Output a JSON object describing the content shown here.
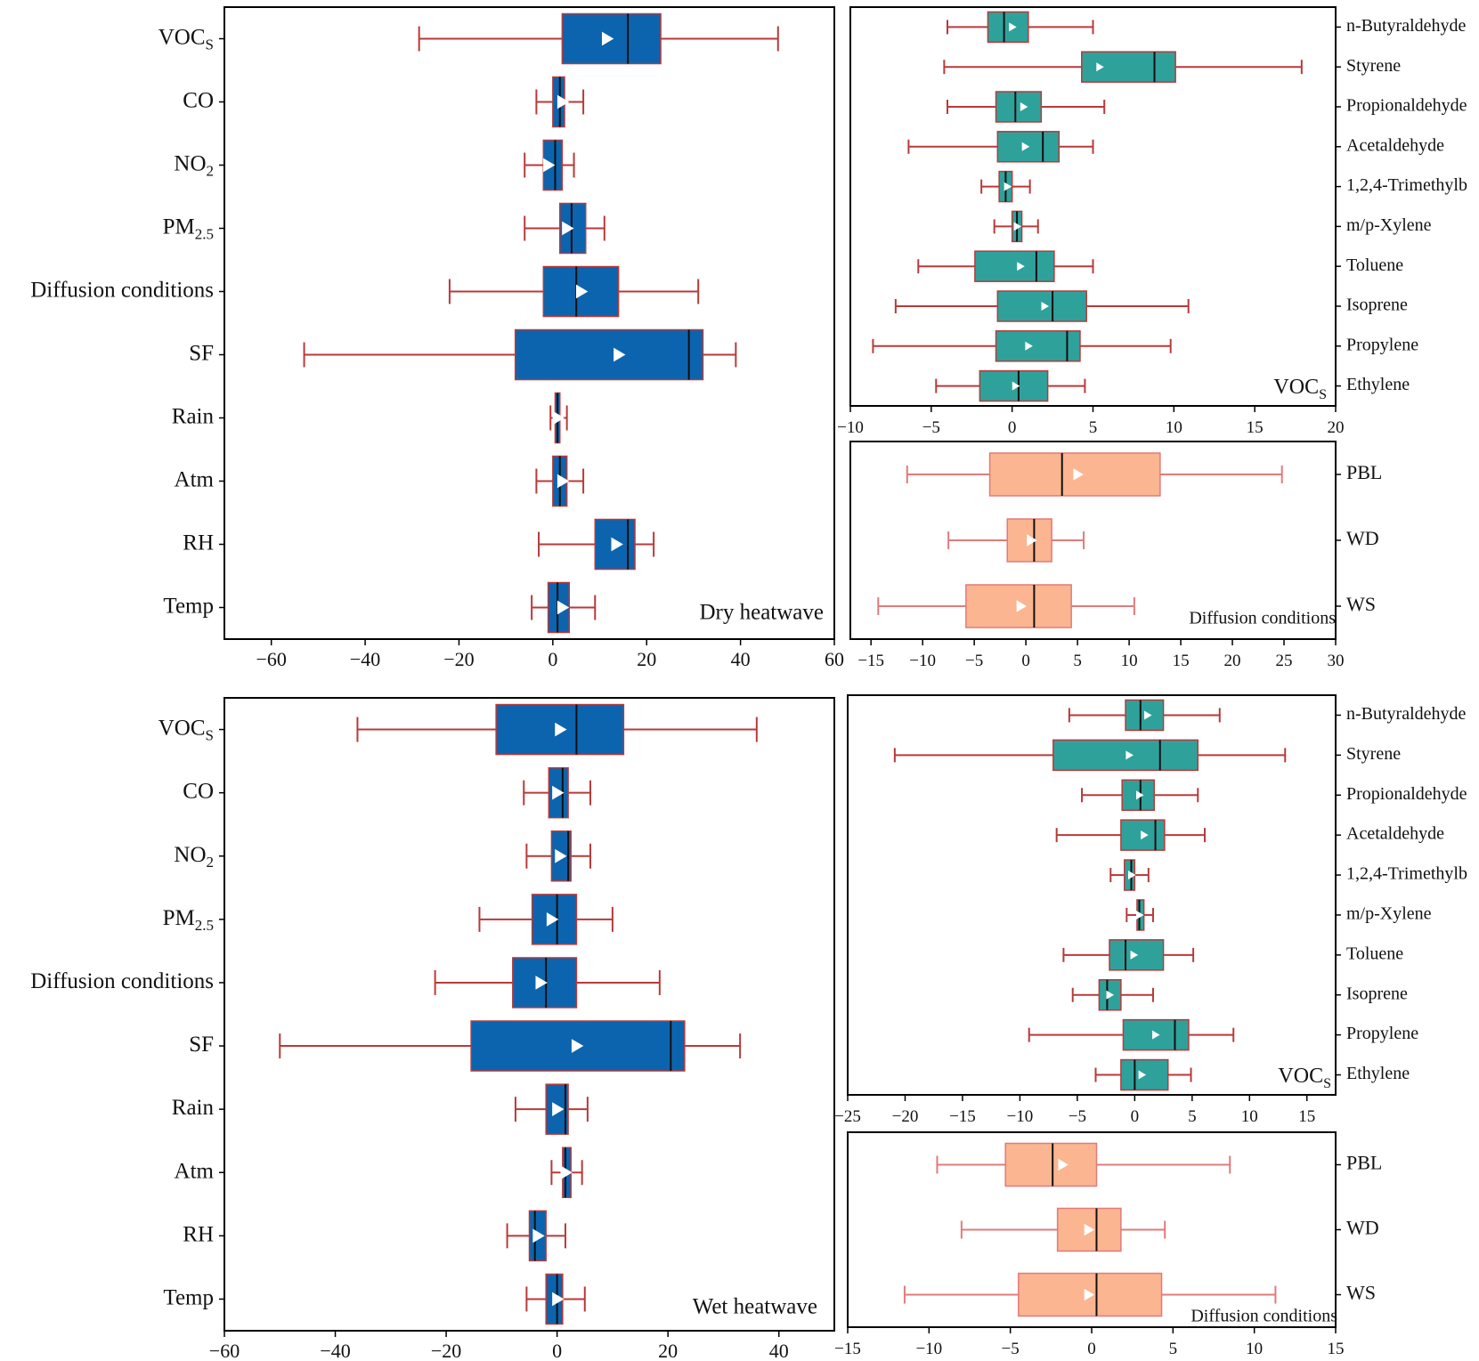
{
  "colors": {
    "main_box": "#0c64ae",
    "voc_box": "#2fa19b",
    "diff_box": "#fbb590",
    "whisker_main": "#b83a3a",
    "whisker_light": "#e07b7b",
    "median": "#111111",
    "mean_marker": "#ffffff"
  },
  "chart_data": [
    {
      "id": "dry_main",
      "type": "boxplot",
      "orientation": "horizontal",
      "annotation": "Dry heatwave",
      "xlim": [
        -70,
        60
      ],
      "xticks": [
        -60,
        -40,
        -20,
        0,
        20,
        40,
        60
      ],
      "xtick_labels": [
        "−60",
        "−40",
        "−20",
        "0",
        "20",
        "40",
        "60"
      ],
      "categories": [
        {
          "main": "VOC",
          "sub": "S"
        },
        {
          "main": "CO"
        },
        {
          "main": "NO",
          "sub": "2"
        },
        {
          "main": "PM",
          "sub": "2.5"
        },
        {
          "main": "Diffusion conditions"
        },
        {
          "main": "SF"
        },
        {
          "main": "Rain"
        },
        {
          "main": "Atm"
        },
        {
          "main": "RH"
        },
        {
          "main": "Temp"
        }
      ],
      "boxes": [
        {
          "wlo": -28.5,
          "q1": 2,
          "median": 16,
          "q3": 23,
          "whi": 48,
          "mean": 11.5
        },
        {
          "wlo": -3.5,
          "q1": 0,
          "median": 1.5,
          "q3": 2.5,
          "whi": 6.5,
          "mean": 2
        },
        {
          "wlo": -6,
          "q1": -2,
          "median": 0.5,
          "q3": 2,
          "whi": 4.5,
          "mean": -1
        },
        {
          "wlo": -6,
          "q1": 1.5,
          "median": 4,
          "q3": 7,
          "whi": 11,
          "mean": 3
        },
        {
          "wlo": -22,
          "q1": -2,
          "median": 5,
          "q3": 14,
          "whi": 31,
          "mean": 6
        },
        {
          "wlo": -53,
          "q1": -8,
          "median": 29,
          "q3": 32,
          "whi": 39,
          "mean": 14
        },
        {
          "wlo": -0.5,
          "q1": 0.5,
          "median": 1,
          "q3": 1.5,
          "whi": 3,
          "mean": 1
        },
        {
          "wlo": -3.5,
          "q1": 0,
          "median": 1.5,
          "q3": 3,
          "whi": 6.5,
          "mean": 2
        },
        {
          "wlo": -3,
          "q1": 9,
          "median": 16,
          "q3": 17.5,
          "whi": 21.5,
          "mean": 13.5
        },
        {
          "wlo": -4.5,
          "q1": -1,
          "median": 1,
          "q3": 3.5,
          "whi": 9,
          "mean": 2
        }
      ]
    },
    {
      "id": "dry_voc",
      "type": "boxplot",
      "orientation": "horizontal",
      "annotation": {
        "main": "VOC",
        "sub": "S"
      },
      "xlim": [
        -10,
        20
      ],
      "xticks": [
        -10,
        -5,
        0,
        5,
        10,
        15,
        20
      ],
      "xtick_labels": [
        "−10",
        "−5",
        "0",
        "5",
        "10",
        "15",
        "20"
      ],
      "categories": [
        "n-Butyraldehyde",
        "Styrene",
        "Propionaldehyde",
        "Acetaldehyde",
        "1,2,4-Trimethylb",
        "m/p-Xylene",
        "Toluene",
        "Isoprene",
        "Propylene",
        "Ethylene"
      ],
      "boxes": [
        {
          "wlo": -4,
          "q1": -1.5,
          "median": -0.5,
          "q3": 1,
          "whi": 5,
          "mean": 0
        },
        {
          "wlo": -4.2,
          "q1": 4.3,
          "median": 8.8,
          "q3": 10.1,
          "whi": 17.9,
          "mean": 5.4
        },
        {
          "wlo": -4,
          "q1": -1,
          "median": 0.2,
          "q3": 1.8,
          "whi": 5.7,
          "mean": 0.7
        },
        {
          "wlo": -6.4,
          "q1": -0.9,
          "median": 1.9,
          "q3": 2.9,
          "whi": 5,
          "mean": 0.8
        },
        {
          "wlo": -1.9,
          "q1": -0.8,
          "median": -0.4,
          "q3": 0,
          "whi": 1.1,
          "mean": -0.3
        },
        {
          "wlo": -1.1,
          "q1": 0,
          "median": 0.3,
          "q3": 0.6,
          "whi": 1.6,
          "mean": 0.3
        },
        {
          "wlo": -5.8,
          "q1": -2.3,
          "median": 1.5,
          "q3": 2.6,
          "whi": 5.0,
          "mean": 0.5
        },
        {
          "wlo": -7.2,
          "q1": -0.9,
          "median": 2.5,
          "q3": 4.6,
          "whi": 10.9,
          "mean": 2
        },
        {
          "wlo": -8.6,
          "q1": -1.0,
          "median": 3.4,
          "q3": 4.2,
          "whi": 9.8,
          "mean": 1
        },
        {
          "wlo": -4.7,
          "q1": -2.0,
          "median": 0.4,
          "q3": 2.2,
          "whi": 4.5,
          "mean": 0.2
        }
      ]
    },
    {
      "id": "dry_diff",
      "type": "boxplot",
      "orientation": "horizontal",
      "annotation": "Diffusion conditions",
      "xlim": [
        -17,
        30
      ],
      "xticks": [
        -15,
        -10,
        -5,
        0,
        5,
        10,
        15,
        20,
        25,
        30
      ],
      "xtick_labels": [
        "−15",
        "−10",
        "−5",
        "0",
        "5",
        "10",
        "15",
        "20",
        "25",
        "30"
      ],
      "categories": [
        "PBL",
        "WD",
        "WS"
      ],
      "boxes": [
        {
          "wlo": -11.5,
          "q1": -3.5,
          "median": 3.5,
          "q3": 13,
          "whi": 24.8,
          "mean": 5
        },
        {
          "wlo": -7.5,
          "q1": -1.8,
          "median": 0.8,
          "q3": 2.5,
          "whi": 5.6,
          "mean": 0.5
        },
        {
          "wlo": -14.3,
          "q1": -5.8,
          "median": 0.8,
          "q3": 4.4,
          "whi": 10.5,
          "mean": -0.5
        }
      ]
    },
    {
      "id": "wet_main",
      "type": "boxplot",
      "orientation": "horizontal",
      "annotation": "Wet heatwave",
      "xlim": [
        -60,
        50
      ],
      "xticks": [
        -60,
        -40,
        -20,
        0,
        20,
        40
      ],
      "xtick_labels": [
        "−60",
        "−40",
        "−20",
        "0",
        "20",
        "40"
      ],
      "categories": [
        {
          "main": "VOC",
          "sub": "S"
        },
        {
          "main": "CO"
        },
        {
          "main": "NO",
          "sub": "2"
        },
        {
          "main": "PM",
          "sub": "2.5"
        },
        {
          "main": "Diffusion conditions"
        },
        {
          "main": "SF"
        },
        {
          "main": "Rain"
        },
        {
          "main": "Atm"
        },
        {
          "main": "RH"
        },
        {
          "main": "Temp"
        }
      ],
      "boxes": [
        {
          "wlo": -36,
          "q1": -11,
          "median": 3.5,
          "q3": 12,
          "whi": 36,
          "mean": 0.5
        },
        {
          "wlo": -6,
          "q1": -1.5,
          "median": 1,
          "q3": 2,
          "whi": 6,
          "mean": 0
        },
        {
          "wlo": -5.5,
          "q1": -1,
          "median": 2,
          "q3": 2.5,
          "whi": 6,
          "mean": 0.5
        },
        {
          "wlo": -14,
          "q1": -4.5,
          "median": 0,
          "q3": 3.5,
          "whi": 10,
          "mean": -1
        },
        {
          "wlo": -22,
          "q1": -8,
          "median": -2,
          "q3": 3.5,
          "whi": 18.5,
          "mean": -3
        },
        {
          "wlo": -50,
          "q1": -15.5,
          "median": 20.5,
          "q3": 23,
          "whi": 33,
          "mean": 3.5
        },
        {
          "wlo": -7.5,
          "q1": -2,
          "median": 1.5,
          "q3": 2,
          "whi": 5.5,
          "mean": 0
        },
        {
          "wlo": -1,
          "q1": 1,
          "median": 1.5,
          "q3": 2.5,
          "whi": 4.5,
          "mean": 1.5
        },
        {
          "wlo": -9,
          "q1": -5,
          "median": -4,
          "q3": -2,
          "whi": 1.5,
          "mean": -3.5
        },
        {
          "wlo": -5.5,
          "q1": -2,
          "median": 0,
          "q3": 1,
          "whi": 5,
          "mean": 0
        }
      ]
    },
    {
      "id": "wet_voc",
      "type": "boxplot",
      "orientation": "horizontal",
      "annotation": {
        "main": "VOC",
        "sub": "S"
      },
      "xlim": [
        -25,
        17.5
      ],
      "xticks": [
        -25,
        -20,
        -15,
        -10,
        -5,
        0,
        5,
        10,
        15
      ],
      "xtick_labels": [
        "−25",
        "−20",
        "−15",
        "−10",
        "−5",
        "0",
        "5",
        "10",
        "15"
      ],
      "categories": [
        "n-Butyraldehyde",
        "Styrene",
        "Propionaldehyde",
        "Acetaldehyde",
        "1,2,4-Trimethylb",
        "m/p-Xylene",
        "Toluene",
        "Isoprene",
        "Propylene",
        "Ethylene"
      ],
      "boxes": [
        {
          "wlo": -5.7,
          "q1": -0.8,
          "median": 0.5,
          "q3": 2.5,
          "whi": 7.4,
          "mean": 1.1
        },
        {
          "wlo": -20.9,
          "q1": -7.1,
          "median": 2.2,
          "q3": 5.5,
          "whi": 13.1,
          "mean": -0.5
        },
        {
          "wlo": -4.6,
          "q1": -1.1,
          "median": 0.5,
          "q3": 1.7,
          "whi": 5.5,
          "mean": 0.4
        },
        {
          "wlo": -6.8,
          "q1": -1.2,
          "median": 1.8,
          "q3": 2.6,
          "whi": 6.1,
          "mean": 0.8
        },
        {
          "wlo": -2.1,
          "q1": -0.9,
          "median": -0.3,
          "q3": 0,
          "whi": 1.2,
          "mean": -0.3
        },
        {
          "wlo": -0.7,
          "q1": 0.2,
          "median": 0.4,
          "q3": 0.8,
          "whi": 1.6,
          "mean": 0.4
        },
        {
          "wlo": -6.2,
          "q1": -2.2,
          "median": -0.8,
          "q3": 2.5,
          "whi": 5.1,
          "mean": -0.1
        },
        {
          "wlo": -5.4,
          "q1": -3.1,
          "median": -2.4,
          "q3": -1.2,
          "whi": 1.6,
          "mean": -2.2
        },
        {
          "wlo": -9.2,
          "q1": -1.0,
          "median": 3.5,
          "q3": 4.7,
          "whi": 8.6,
          "mean": 1.8
        },
        {
          "wlo": -3.4,
          "q1": -1.2,
          "median": 0,
          "q3": 2.9,
          "whi": 4.9,
          "mean": 0.6
        }
      ]
    },
    {
      "id": "wet_diff",
      "type": "boxplot",
      "orientation": "horizontal",
      "annotation": "Diffusion conditions",
      "xlim": [
        -15,
        15
      ],
      "xticks": [
        -15,
        -10,
        -5,
        0,
        5,
        10,
        15
      ],
      "xtick_labels": [
        "−15",
        "−10",
        "−5",
        "0",
        "5",
        "10",
        "15"
      ],
      "categories": [
        "PBL",
        "WD",
        "WS"
      ],
      "boxes": [
        {
          "wlo": -9.5,
          "q1": -5.3,
          "median": -2.4,
          "q3": 0.3,
          "whi": 8.5,
          "mean": -1.8
        },
        {
          "wlo": -8,
          "q1": -2.1,
          "median": 0.3,
          "q3": 1.8,
          "whi": 4.5,
          "mean": -0.2
        },
        {
          "wlo": -11.5,
          "q1": -4.5,
          "median": 0.3,
          "q3": 4.3,
          "whi": 11.3,
          "mean": -0.2
        }
      ]
    }
  ]
}
